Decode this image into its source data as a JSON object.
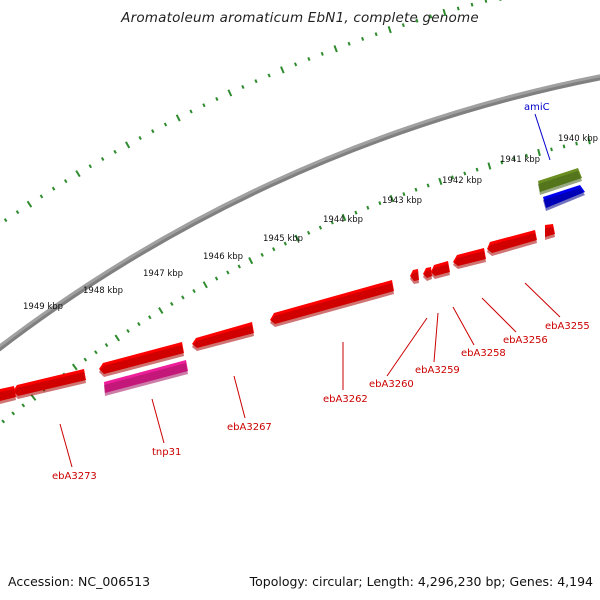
{
  "title": "Aromatoleum aromaticum EbN1, complete genome",
  "accession": "Accession: NC_006513",
  "summary": "Topology: circular; Length: 4,296,230 bp; Genes: 4,194",
  "colors": {
    "backbone": "#808080",
    "forward_gene": "#ff0000",
    "reverse_gene": "#ff0000",
    "transposase": "#ee1e9a",
    "rna": "#6b8e23",
    "amic_gene": "#0000ee",
    "tick_dots": "#2e8b2e",
    "label_red": "#cc0000",
    "label_blue": "#0000cc"
  },
  "kbp_ticks": [
    "1940 kbp",
    "1941 kbp",
    "1942 kbp",
    "1943 kbp",
    "1944 kbp",
    "1945 kbp",
    "1946 kbp",
    "1947 kbp",
    "1948 kbp",
    "1949 kbp"
  ],
  "gene_labels": [
    {
      "name": "amiC",
      "color": "blue"
    },
    {
      "name": "ebA3255",
      "color": "red"
    },
    {
      "name": "ebA3256",
      "color": "red"
    },
    {
      "name": "ebA3258",
      "color": "red"
    },
    {
      "name": "ebA3259",
      "color": "red"
    },
    {
      "name": "ebA3260",
      "color": "red"
    },
    {
      "name": "ebA3262",
      "color": "red"
    },
    {
      "name": "ebA3267",
      "color": "red"
    },
    {
      "name": "tnp31",
      "color": "red"
    },
    {
      "name": "ebA3273",
      "color": "red"
    }
  ]
}
